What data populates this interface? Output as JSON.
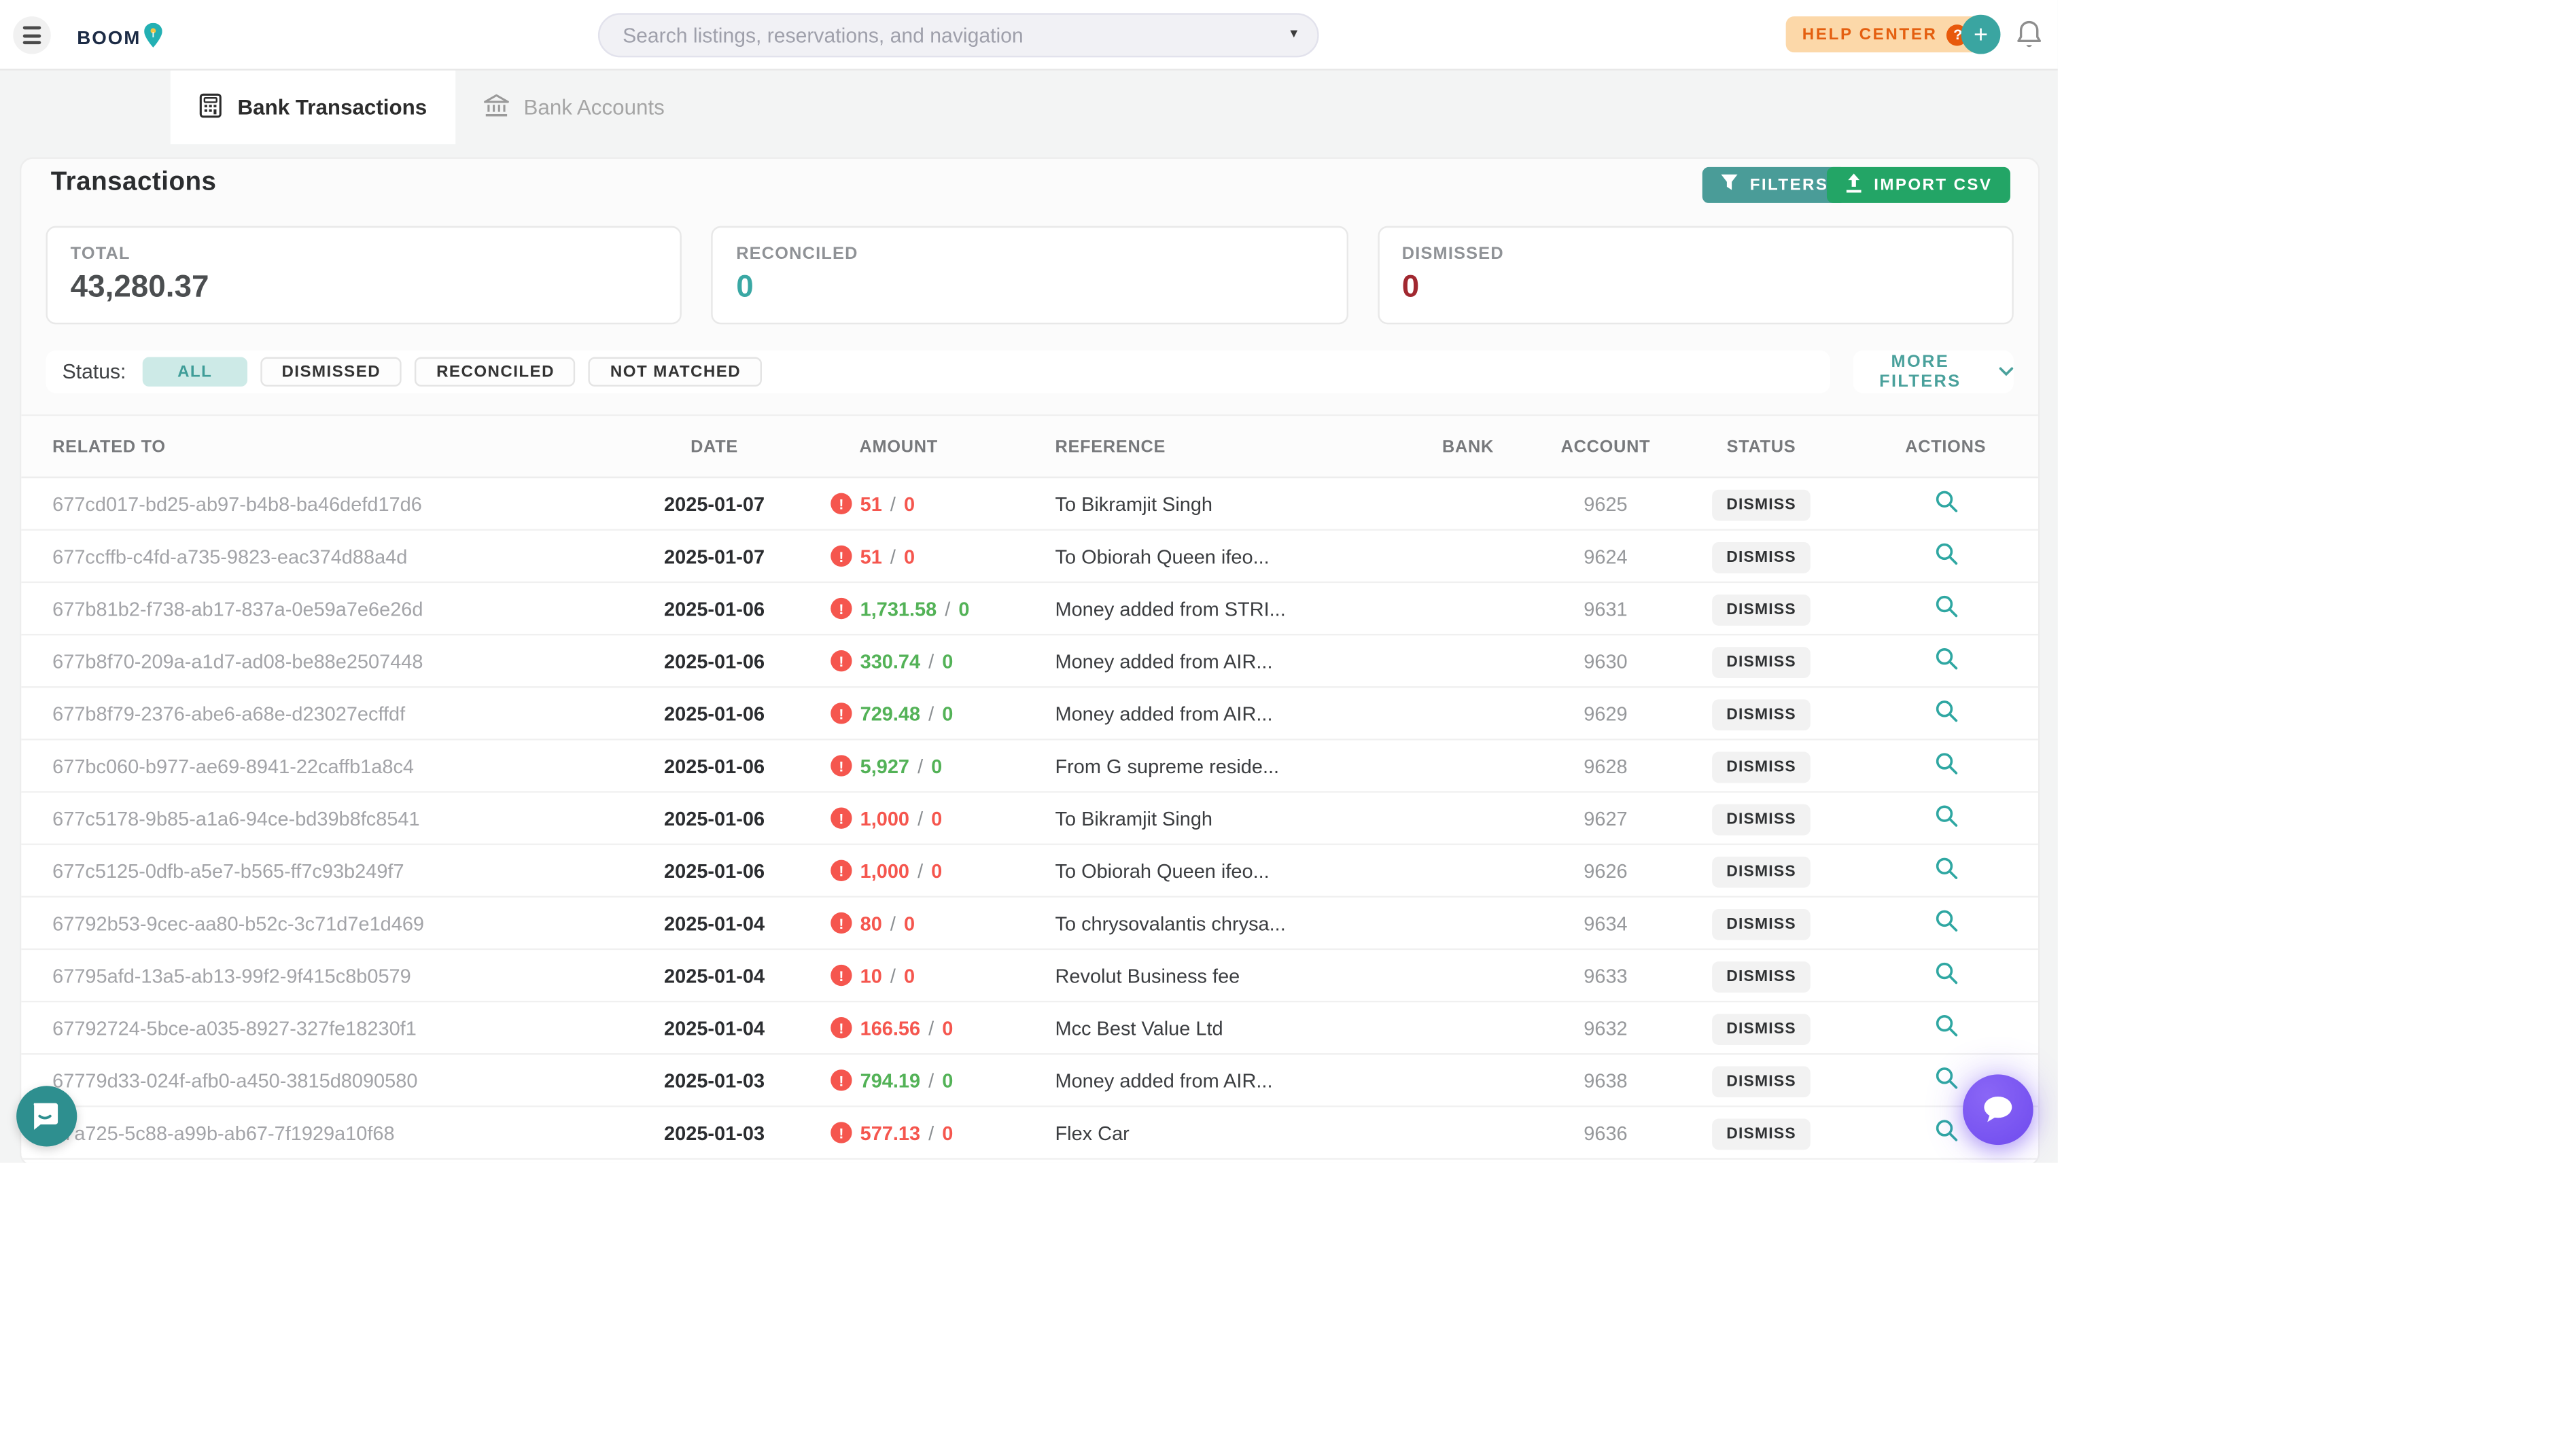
{
  "theme": {
    "teal": "#3aa5a1",
    "green_button": "#23a566",
    "red_amount": "#f5564e",
    "green_amount": "#53b257",
    "dark_red": "#a12830",
    "total_value_color": "#4b4e50",
    "reconciled_value_color": "#3aa8a4",
    "orange": "#e45f10",
    "purple": "#7a57f2"
  },
  "header": {
    "logo": "BOOM",
    "search_placeholder": "Search listings, reservations, and navigation",
    "help_center_label": "HELP CENTER"
  },
  "tabs": [
    {
      "label": "Bank Transactions",
      "active": true
    },
    {
      "label": "Bank Accounts",
      "active": false
    }
  ],
  "page": {
    "title": "Transactions",
    "filters_button": "FILTERS",
    "import_button": "IMPORT CSV"
  },
  "summary": [
    {
      "label": "TOTAL",
      "value": "43,280.37",
      "value_color": "#4b4e50"
    },
    {
      "label": "RECONCILED",
      "value": "0",
      "value_color": "#3aa8a4"
    },
    {
      "label": "DISMISSED",
      "value": "0",
      "value_color": "#a12830"
    }
  ],
  "status_filter": {
    "label": "Status:",
    "options": [
      "ALL",
      "DISMISSED",
      "RECONCILED",
      "NOT MATCHED"
    ],
    "active": "ALL",
    "more_filters_label": "MORE FILTERS"
  },
  "table": {
    "columns": [
      "RELATED TO",
      "DATE",
      "AMOUNT",
      "REFERENCE",
      "BANK",
      "ACCOUNT",
      "STATUS",
      "ACTIONS"
    ],
    "dismiss_button": "DISMISS",
    "rows": [
      {
        "related_to": "677cd017-bd25-ab97-b4b8-ba46defd17d6",
        "date": "2025-01-07",
        "amount": "51",
        "matched": "0",
        "amount_color": "red",
        "reference": "To Bikramjit Singh",
        "bank": "",
        "account": "9625"
      },
      {
        "related_to": "677ccffb-c4fd-a735-9823-eac374d88a4d",
        "date": "2025-01-07",
        "amount": "51",
        "matched": "0",
        "amount_color": "red",
        "reference": "To Obiorah Queen ifeo...",
        "bank": "",
        "account": "9624"
      },
      {
        "related_to": "677b81b2-f738-ab17-837a-0e59a7e6e26d",
        "date": "2025-01-06",
        "amount": "1,731.58",
        "matched": "0",
        "amount_color": "green",
        "reference": "Money added from STRI...",
        "bank": "",
        "account": "9631"
      },
      {
        "related_to": "677b8f70-209a-a1d7-ad08-be88e2507448",
        "date": "2025-01-06",
        "amount": "330.74",
        "matched": "0",
        "amount_color": "green",
        "reference": "Money added from AIR...",
        "bank": "",
        "account": "9630"
      },
      {
        "related_to": "677b8f79-2376-abe6-a68e-d23027ecffdf",
        "date": "2025-01-06",
        "amount": "729.48",
        "matched": "0",
        "amount_color": "green",
        "reference": "Money added from AIR...",
        "bank": "",
        "account": "9629"
      },
      {
        "related_to": "677bc060-b977-ae69-8941-22caffb1a8c4",
        "date": "2025-01-06",
        "amount": "5,927",
        "matched": "0",
        "amount_color": "green",
        "reference": "From G supreme reside...",
        "bank": "",
        "account": "9628"
      },
      {
        "related_to": "677c5178-9b85-a1a6-94ce-bd39b8fc8541",
        "date": "2025-01-06",
        "amount": "1,000",
        "matched": "0",
        "amount_color": "red",
        "reference": "To Bikramjit Singh",
        "bank": "",
        "account": "9627"
      },
      {
        "related_to": "677c5125-0dfb-a5e7-b565-ff7c93b249f7",
        "date": "2025-01-06",
        "amount": "1,000",
        "matched": "0",
        "amount_color": "red",
        "reference": "To Obiorah Queen ifeo...",
        "bank": "",
        "account": "9626"
      },
      {
        "related_to": "67792b53-9cec-aa80-b52c-3c71d7e1d469",
        "date": "2025-01-04",
        "amount": "80",
        "matched": "0",
        "amount_color": "red",
        "reference": "To chrysovalantis chrysa...",
        "bank": "",
        "account": "9634"
      },
      {
        "related_to": "67795afd-13a5-ab13-99f2-9f415c8b0579",
        "date": "2025-01-04",
        "amount": "10",
        "matched": "0",
        "amount_color": "red",
        "reference": "Revolut Business fee",
        "bank": "",
        "account": "9633"
      },
      {
        "related_to": "67792724-5bce-a035-8927-327fe18230f1",
        "date": "2025-01-04",
        "amount": "166.56",
        "matched": "0",
        "amount_color": "red",
        "reference": "Mcc Best Value Ltd",
        "bank": "",
        "account": "9632"
      },
      {
        "related_to": "67779d33-024f-afb0-a450-3815d8090580",
        "date": "2025-01-03",
        "amount": "794.19",
        "matched": "0",
        "amount_color": "green",
        "reference": "Money added from AIR...",
        "bank": "",
        "account": "9638"
      },
      {
        "related_to": "77a725-5c88-a99b-ab67-7f1929a10f68",
        "date": "2025-01-03",
        "amount": "577.13",
        "matched": "0",
        "amount_color": "red",
        "reference": "Flex Car",
        "bank": "",
        "account": "9636"
      }
    ]
  }
}
